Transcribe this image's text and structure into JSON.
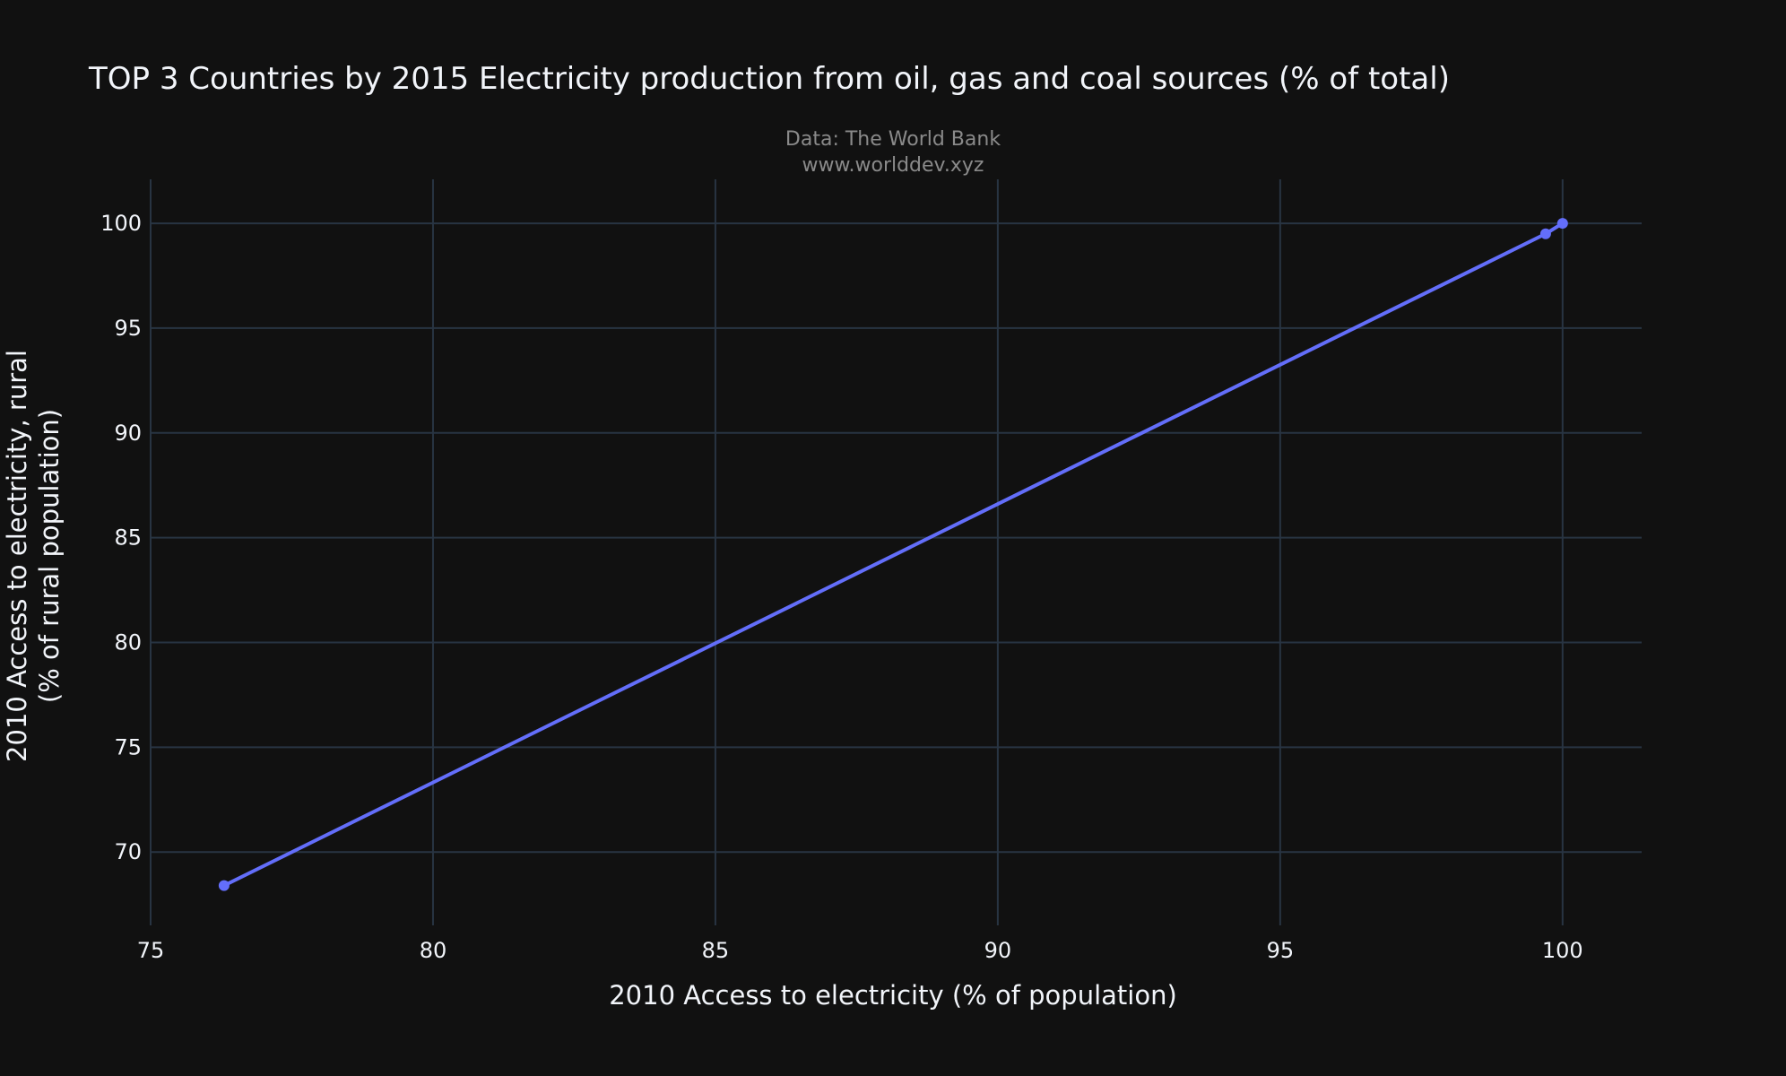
{
  "chart_data": {
    "type": "line",
    "title": "TOP 3 Countries by 2015 Electricity production from oil, gas and coal sources (% of total)",
    "annotation_lines": [
      "Data: The World Bank",
      "www.worlddev.xyz"
    ],
    "xlabel": "2010 Access to electricity (% of population)",
    "ylabel_lines": [
      "2010 Access to electricity, rural",
      "(% of rural population)"
    ],
    "xlim": [
      75,
      101.4
    ],
    "ylim": [
      66.5,
      102.1
    ],
    "xticks": [
      75,
      80,
      85,
      90,
      95,
      100
    ],
    "yticks": [
      70,
      75,
      80,
      85,
      90,
      95,
      100
    ],
    "grid": true,
    "series": [
      {
        "x": [
          76.3,
          99.7,
          100
        ],
        "y": [
          68.4,
          99.5,
          100
        ],
        "mode": "lines+markers"
      }
    ],
    "colors": {
      "background": "#111111",
      "line": "#636efa",
      "grid": "#283442",
      "text": "#f2f5fa",
      "subtitle": "#8a8a8a"
    }
  }
}
